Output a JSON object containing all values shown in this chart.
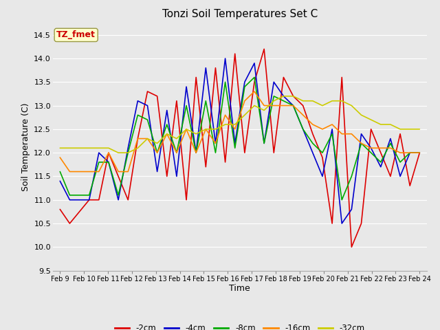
{
  "title": "Tonzi Soil Temperatures Set C",
  "xlabel": "Time",
  "ylabel": "Soil Temperature (C)",
  "ylim": [
    9.5,
    14.75
  ],
  "bg_color": "#e8e8e8",
  "annotation_text": "TZ_fmet",
  "annotation_color": "#cc0000",
  "annotation_bg": "#ffffcc",
  "series_colors": {
    "-2cm": "#dd0000",
    "-4cm": "#0000cc",
    "-8cm": "#00aa00",
    "-16cm": "#ff8800",
    "-32cm": "#cccc00"
  },
  "xtick_labels": [
    "Feb 9",
    "Feb 10",
    "Feb 11",
    "Feb 12",
    "Feb 13",
    "Feb 14",
    "Feb 15",
    "Feb 16",
    "Feb 17",
    "Feb 18",
    "Feb 19",
    "Feb 20",
    "Feb 21",
    "Feb 22",
    "Feb 23",
    "Feb 24"
  ],
  "data": {
    "-2cm": [
      10.8,
      10.5,
      10.75,
      11.0,
      11.0,
      12.0,
      11.5,
      11.0,
      12.3,
      13.3,
      13.2,
      11.5,
      13.1,
      11.0,
      13.6,
      11.7,
      13.8,
      11.8,
      14.1,
      12.0,
      13.5,
      14.2,
      12.0,
      13.6,
      13.2,
      13.0,
      12.4,
      11.9,
      10.5,
      13.6,
      10.0,
      10.5,
      12.5,
      12.0,
      11.5,
      12.4,
      11.3,
      12.0
    ],
    "-4cm": [
      11.4,
      11.0,
      11.0,
      11.0,
      12.0,
      11.8,
      11.0,
      12.1,
      13.1,
      13.0,
      11.6,
      12.9,
      11.5,
      13.4,
      12.0,
      13.8,
      12.2,
      14.0,
      12.2,
      13.5,
      13.9,
      12.2,
      13.5,
      13.2,
      13.0,
      12.5,
      12.0,
      11.5,
      12.5,
      10.5,
      10.8,
      12.4,
      12.1,
      11.7,
      12.3,
      11.5,
      12.0,
      12.0
    ],
    "-8cm": [
      11.6,
      11.1,
      11.1,
      11.1,
      11.8,
      11.8,
      11.1,
      12.0,
      12.8,
      12.7,
      12.0,
      12.6,
      12.0,
      13.0,
      12.0,
      13.1,
      12.0,
      13.5,
      12.1,
      13.4,
      13.6,
      12.2,
      13.2,
      13.1,
      13.0,
      12.5,
      12.2,
      12.0,
      12.4,
      11.0,
      11.5,
      12.2,
      12.0,
      11.8,
      12.2,
      11.8,
      12.0,
      12.0
    ],
    "-16cm": [
      11.9,
      11.6,
      11.6,
      11.6,
      11.6,
      12.0,
      11.6,
      11.6,
      12.3,
      12.3,
      12.0,
      12.4,
      12.0,
      12.5,
      12.0,
      12.5,
      12.2,
      12.8,
      12.5,
      13.1,
      13.3,
      13.0,
      13.0,
      13.0,
      13.0,
      12.8,
      12.6,
      12.5,
      12.6,
      12.4,
      12.4,
      12.2,
      12.1,
      12.1,
      12.1,
      12.0,
      12.0,
      12.0
    ],
    "-32cm": [
      12.1,
      12.1,
      12.1,
      12.1,
      12.1,
      12.1,
      12.0,
      12.0,
      12.1,
      12.3,
      12.2,
      12.4,
      12.3,
      12.5,
      12.4,
      12.5,
      12.5,
      12.6,
      12.6,
      12.8,
      13.0,
      12.9,
      13.1,
      13.2,
      13.2,
      13.1,
      13.1,
      13.0,
      13.1,
      13.1,
      13.0,
      12.8,
      12.7,
      12.6,
      12.6,
      12.5,
      12.5,
      12.5
    ]
  }
}
